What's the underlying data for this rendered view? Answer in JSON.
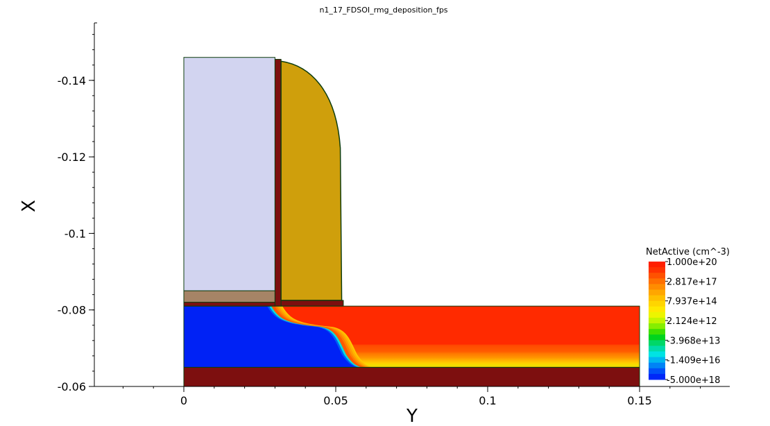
{
  "chart_data": {
    "type": "heatmap",
    "title": "n1_17_FDSOI_rmg_deposition_fps",
    "xlabel": "Y",
    "ylabel": "X",
    "x_range": [
      -0.03,
      0.18
    ],
    "y_range": [
      -0.06,
      -0.155
    ],
    "y_reversed": true,
    "x_ticks": [
      "0",
      "0.05",
      "0.1",
      "0.15"
    ],
    "x_tick_values": [
      0,
      0.05,
      0.1,
      0.15
    ],
    "y_ticks": [
      "-0.14",
      "-0.12",
      "-0.1",
      "-0.08",
      "-0.06"
    ],
    "y_tick_values": [
      -0.14,
      -0.12,
      -0.1,
      -0.08,
      -0.06
    ],
    "colors": {
      "gate": "#d2d4f0",
      "gate_liner": "#a68466",
      "oxide": "#7d0f0f",
      "spacer": "#cf9f0c",
      "outline": "#0e3d0e",
      "silicon_n": "#0022f5",
      "silicon_p": "#ff2a00"
    },
    "regions": [
      {
        "name": "gate",
        "material": "gate",
        "y": [
          0,
          0.03
        ],
        "x": [
          -0.146,
          -0.085
        ]
      },
      {
        "name": "gate-liner",
        "material": "gate_liner",
        "y": [
          0,
          0.03
        ],
        "x": [
          -0.085,
          -0.082
        ]
      },
      {
        "name": "gate-oxide",
        "material": "oxide",
        "y": [
          0,
          0.03
        ],
        "x": [
          -0.082,
          -0.081
        ]
      },
      {
        "name": "spacer-liner",
        "material": "oxide",
        "y": [
          0.03,
          0.032
        ],
        "x": [
          -0.1455,
          -0.081
        ]
      },
      {
        "name": "spacer-base",
        "material": "oxide",
        "y": [
          0.032,
          0.0525
        ],
        "x": [
          -0.0825,
          -0.081
        ]
      },
      {
        "name": "box-oxide",
        "material": "oxide",
        "y": [
          0,
          0.15
        ],
        "x": [
          -0.065,
          -0.06
        ]
      }
    ],
    "silicon": {
      "y": [
        0,
        0.15
      ],
      "x": [
        -0.081,
        -0.065
      ]
    },
    "legend": {
      "title": "NetActive (cm^-3)",
      "placement": "right",
      "labels": [
        "1.000e+20",
        "2.817e+17",
        "7.937e+14",
        "2.124e+12",
        "-3.968e+13",
        "-1.409e+16",
        "-5.000e+18"
      ],
      "colors": [
        "#ff2000",
        "#ff3300",
        "#ff5200",
        "#ff7000",
        "#ff8c00",
        "#ffa600",
        "#ffbf00",
        "#ffd500",
        "#ffe800",
        "#ecf500",
        "#c2f500",
        "#86ee00",
        "#3ee000",
        "#00d41e",
        "#00d768",
        "#00dbaa",
        "#00e3e3",
        "#00b6f0",
        "#0083f5",
        "#0050f8",
        "#0028f8"
      ]
    }
  }
}
